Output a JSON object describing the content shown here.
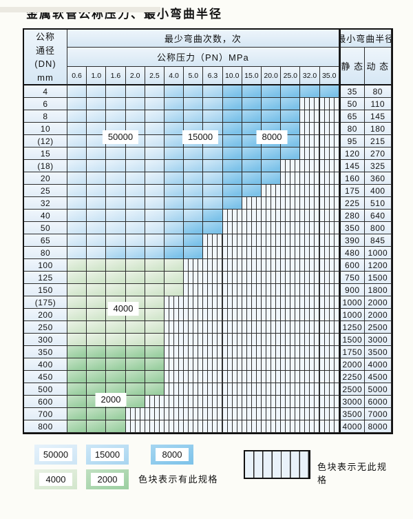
{
  "title": "金属软管公称压力、最小弯曲半径",
  "header": {
    "dn_lines": [
      "公称",
      "通径",
      "(DN)",
      "mm"
    ],
    "cycles_label": "最少弯曲次数，次",
    "pressure_label": "公称压力（PN）MPa",
    "radius_label": "最小弯曲半径",
    "static_label": "静 态",
    "dynamic_label": "动 态",
    "pressure_ticks": [
      "0.6",
      "1.0",
      "1.6",
      "2.0",
      "2.5",
      "4.0",
      "5.0",
      "6.3",
      "10.0",
      "15.0",
      "20.0",
      "25.0",
      "32.0",
      "35.0"
    ]
  },
  "annotations": [
    {
      "label": "50000"
    },
    {
      "label": "15000"
    },
    {
      "label": "8000"
    },
    {
      "label": "4000"
    },
    {
      "label": "2000"
    }
  ],
  "legend": {
    "swatches": [
      {
        "label": "50000",
        "key": "c50000"
      },
      {
        "label": "15000",
        "key": "c15000"
      },
      {
        "label": "8000",
        "key": "c8000"
      },
      {
        "label": "4000",
        "key": "c4000"
      },
      {
        "label": "2000",
        "key": "c2000"
      }
    ],
    "present_note": "色块表示有此规格",
    "absent_note": "色块表示无此规格"
  },
  "colors": {
    "c50000": [
      "#e6f2fb",
      "#cde5f5"
    ],
    "c15000": [
      "#cde7f7",
      "#a8d5f0"
    ],
    "c8000": [
      "#a6d6f1",
      "#7cc2e9"
    ],
    "c4000": [
      "#e8f1e3",
      "#d2e6cc"
    ],
    "c2000": [
      "#c0e0c1",
      "#9bcfa1"
    ],
    "hatch_bg": "#f1f7fc",
    "hatch_line": "#2e2e2e",
    "grid_line": "#2b2b2b"
  },
  "chart_data": {
    "type": "table",
    "title": "金属软管公称压力、最小弯曲半径",
    "pressure_columns_MPa": [
      0.6,
      1.0,
      1.6,
      2.0,
      2.5,
      4.0,
      5.0,
      6.3,
      10.0,
      15.0,
      20.0,
      25.0,
      32.0,
      35.0
    ],
    "cycle_zones": {
      "A": 50000,
      "B": 15000,
      "C": 8000,
      "D": 4000,
      "E": 2000,
      "N": null
    },
    "rows": [
      {
        "dn": "4",
        "cells": "AAAAABBBCCCCCC",
        "static": "35",
        "dynamic": "80"
      },
      {
        "dn": "6",
        "cells": "AAAAABBBCCCCNN",
        "static": "50",
        "dynamic": "110"
      },
      {
        "dn": "8",
        "cells": "AAAAABBBCCCCNN",
        "static": "65",
        "dynamic": "145"
      },
      {
        "dn": "10",
        "cells": "AAAAABBBCCCCNN",
        "static": "80",
        "dynamic": "180"
      },
      {
        "dn": "(12)",
        "cells": "AAAAABBBCCCCNN",
        "static": "95",
        "dynamic": "215"
      },
      {
        "dn": "15",
        "cells": "AAAAABBBCCCCNN",
        "static": "120",
        "dynamic": "270"
      },
      {
        "dn": "(18)",
        "cells": "AAAAABBBCCCNNN",
        "static": "145",
        "dynamic": "325"
      },
      {
        "dn": "20",
        "cells": "AAAAABBBCCCNNN",
        "static": "160",
        "dynamic": "360"
      },
      {
        "dn": "25",
        "cells": "AAAAABBBCCNNNN",
        "static": "175",
        "dynamic": "400"
      },
      {
        "dn": "32",
        "cells": "AAAAABBBCNNNNN",
        "static": "225",
        "dynamic": "510"
      },
      {
        "dn": "40",
        "cells": "AAAAABBCNNNNNN",
        "static": "280",
        "dynamic": "640"
      },
      {
        "dn": "50",
        "cells": "AAAAABCCNNNNNN",
        "static": "350",
        "dynamic": "800"
      },
      {
        "dn": "65",
        "cells": "AAAAABCNNNNNNN",
        "static": "390",
        "dynamic": "845"
      },
      {
        "dn": "80",
        "cells": "AABBBCCNNNNNNN",
        "static": "480",
        "dynamic": "1000"
      },
      {
        "dn": "100",
        "cells": "DDDDDDNNNNNNNN",
        "static": "600",
        "dynamic": "1200"
      },
      {
        "dn": "125",
        "cells": "DDDDDDNNNNNNNN",
        "static": "750",
        "dynamic": "1500"
      },
      {
        "dn": "150",
        "cells": "DDDDDDNNNNNNNN",
        "static": "900",
        "dynamic": "1800"
      },
      {
        "dn": "(175)",
        "cells": "DDDDDNNNNNNNNN",
        "static": "1000",
        "dynamic": "2000"
      },
      {
        "dn": "200",
        "cells": "DDDDDNNNNNNNNN",
        "static": "1000",
        "dynamic": "2000"
      },
      {
        "dn": "250",
        "cells": "DDDDDNNNNNNNNN",
        "static": "1250",
        "dynamic": "2500"
      },
      {
        "dn": "300",
        "cells": "DDDDDNNNNNNNNN",
        "static": "1500",
        "dynamic": "3000"
      },
      {
        "dn": "350",
        "cells": "EEEEENNNNNNNNN",
        "static": "1750",
        "dynamic": "3500"
      },
      {
        "dn": "400",
        "cells": "EEEEENNNNNNNNN",
        "static": "2000",
        "dynamic": "4000"
      },
      {
        "dn": "450",
        "cells": "EEEEENNNNNNNNN",
        "static": "2250",
        "dynamic": "4500"
      },
      {
        "dn": "500",
        "cells": "EEEEENNNNNNNNN",
        "static": "2500",
        "dynamic": "5000"
      },
      {
        "dn": "600",
        "cells": "EEEENNNNNNNNNN",
        "static": "3000",
        "dynamic": "6000"
      },
      {
        "dn": "700",
        "cells": "EEENNNNNNNNNNN",
        "static": "3500",
        "dynamic": "7000"
      },
      {
        "dn": "800",
        "cells": "EEENNNNNNNNNNN",
        "static": "4000",
        "dynamic": "8000"
      }
    ]
  }
}
